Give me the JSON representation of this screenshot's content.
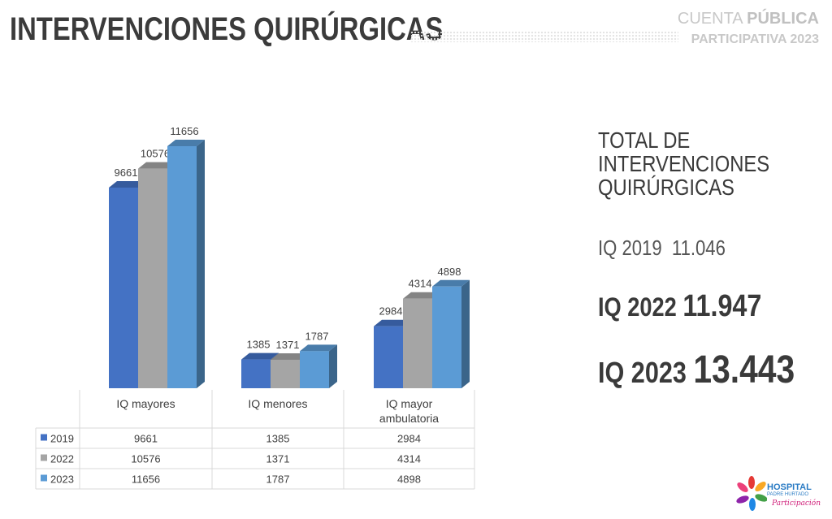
{
  "header": {
    "title": "INTERVENCIONES QUIRÚRGICAS",
    "cuenta_light": "CUENTA",
    "cuenta_bold": "PÚBLICA",
    "participativa": "PARTICIPATIVA 2023"
  },
  "chart_data": {
    "type": "bar",
    "categories": [
      "IQ mayores",
      "IQ menores",
      "IQ mayor ambulatoria"
    ],
    "series": [
      {
        "name": "2019",
        "values": [
          9661,
          1385,
          2984
        ],
        "color": "#4472c4"
      },
      {
        "name": "2022",
        "values": [
          10576,
          1371,
          4314
        ],
        "color": "#a5a5a5"
      },
      {
        "name": "2023",
        "values": [
          11656,
          1787,
          4898
        ],
        "color": "#5b9bd5"
      }
    ],
    "data_table": true,
    "grid": false
  },
  "totals": {
    "heading_line1": "TOTAL DE",
    "heading_line2": "INTERVENCIONES",
    "heading_line3": "QUIRÚRGICAS",
    "iq2019_label": "IQ 2019",
    "iq2019_value": "11.046",
    "iq2022_label": "IQ 2022",
    "iq2022_value": "11.947",
    "iq2023_label": "IQ 2023",
    "iq2023_value": "13.443"
  },
  "logo": {
    "name": "HOSPITAL",
    "sub": "PADRE HURTADO",
    "tag": "Participación"
  }
}
